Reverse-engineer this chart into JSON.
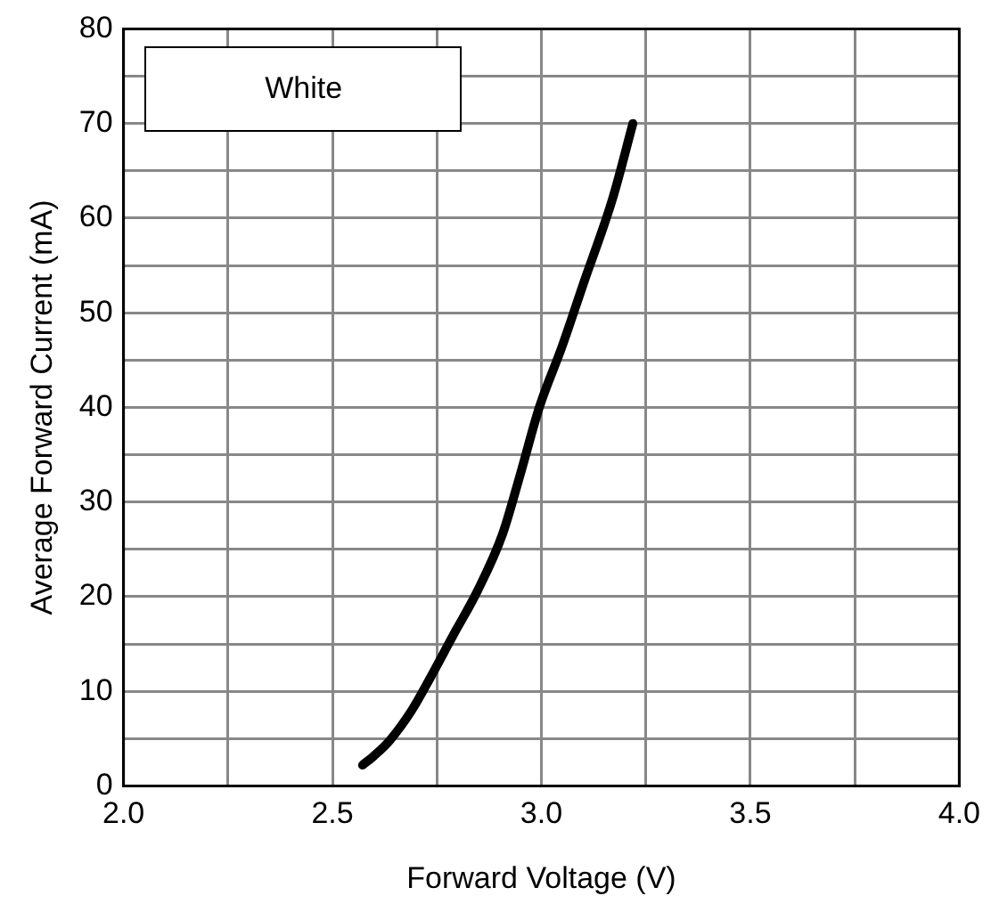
{
  "chart_data": {
    "type": "line",
    "xlabel": "Forward Voltage (V)",
    "ylabel": "Average Forward Current (mA)",
    "series": [
      {
        "name": "White",
        "color": "#000000",
        "x": [
          2.572,
          2.6,
          2.637,
          2.69,
          2.735,
          2.79,
          2.847,
          2.907,
          2.95,
          2.995,
          3.05,
          3.1,
          3.17,
          3.219
        ],
        "values": [
          2.2,
          3.2,
          4.8,
          8,
          11.5,
          16,
          20.6,
          26.6,
          33,
          40,
          46.5,
          53,
          62,
          70
        ]
      }
    ],
    "xlim": [
      2.0,
      4.0
    ],
    "xticks": [
      {
        "value": 2.0,
        "label": "2.0"
      },
      {
        "value": 2.25,
        "label": null
      },
      {
        "value": 2.5,
        "label": "2.5"
      },
      {
        "value": 2.75,
        "label": null
      },
      {
        "value": 3.0,
        "label": "3.0"
      },
      {
        "value": 3.25,
        "label": null
      },
      {
        "value": 3.5,
        "label": "3.5"
      },
      {
        "value": 3.75,
        "label": null
      },
      {
        "value": 4.0,
        "label": "4.0"
      }
    ],
    "ylim": [
      0,
      80
    ],
    "yticks": [
      0,
      {
        "value": 5,
        "label": null
      },
      10,
      {
        "value": 15,
        "label": null
      },
      20,
      {
        "value": 25,
        "label": null
      },
      30,
      {
        "value": 35,
        "label": null
      },
      40,
      {
        "value": 45,
        "label": null
      },
      50,
      {
        "value": 55,
        "label": null
      },
      60,
      {
        "value": 65,
        "label": null
      },
      70,
      {
        "value": 75,
        "label": null
      },
      80
    ],
    "grid": true,
    "legend": "top left",
    "marker": "none",
    "line_style": "solid"
  }
}
